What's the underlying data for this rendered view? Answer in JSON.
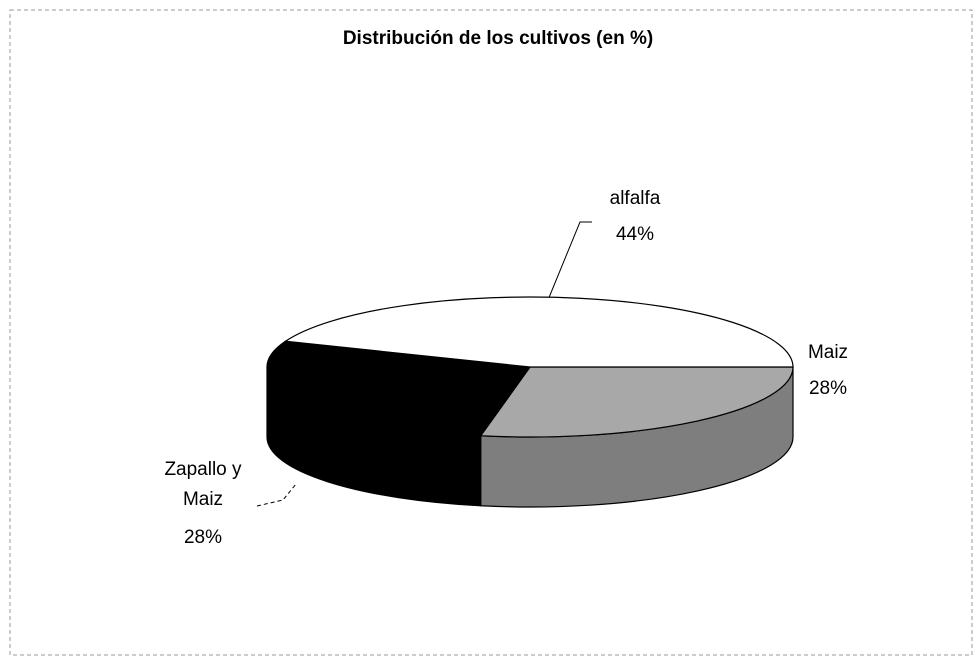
{
  "chart_data": {
    "type": "pie3d",
    "title": "Distribución de los cultivos (en %)",
    "categories": [
      "alfalfa",
      "Maiz",
      "Zapallo y Maiz"
    ],
    "values": [
      44,
      28,
      28
    ],
    "value_labels": [
      "44%",
      "28%",
      "28%"
    ],
    "colors": [
      "#ffffff",
      "#a8a8a8",
      "#000000"
    ]
  }
}
